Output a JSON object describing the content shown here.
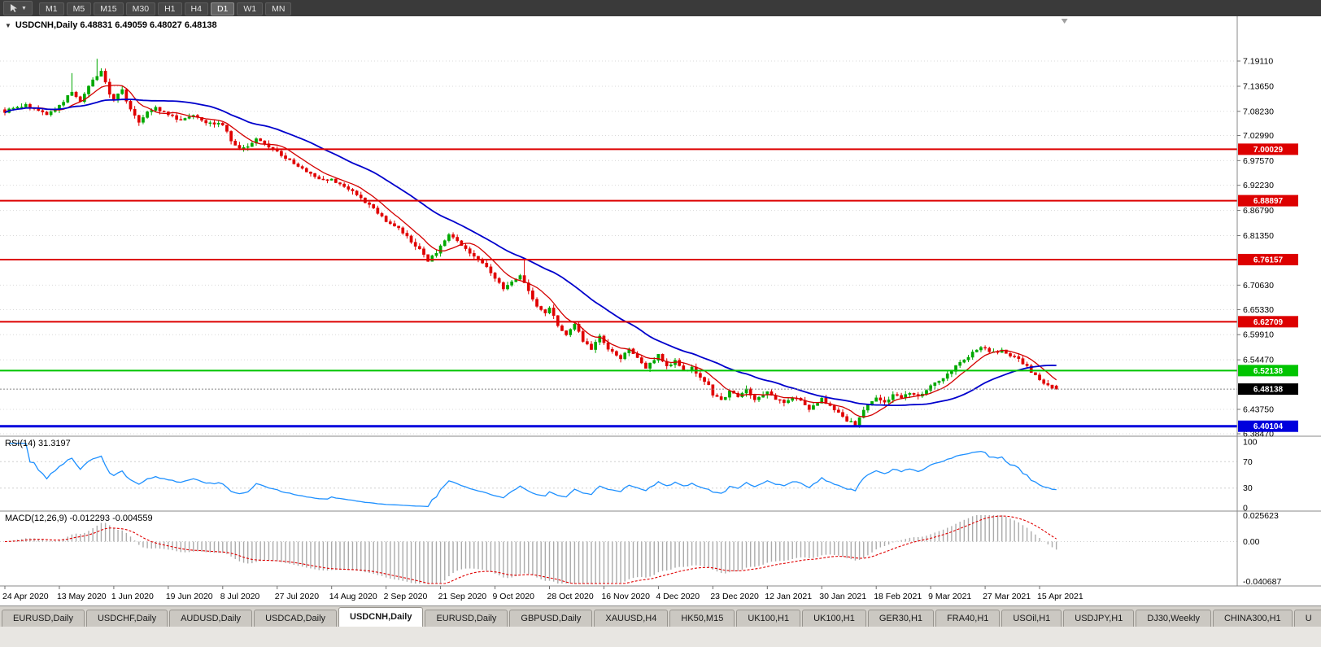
{
  "toolbar": {
    "timeframes": [
      "M1",
      "M5",
      "M15",
      "M30",
      "H1",
      "H4",
      "D1",
      "W1",
      "MN"
    ],
    "active_timeframe": "D1"
  },
  "chart_header": {
    "collapse_icon": "▼",
    "title": "USDCNH,Daily 6.48831 6.49059 6.48027 6.48138"
  },
  "rsi_panel": {
    "label": "RSI(14) 31.3197",
    "axis_labels": [
      "100",
      "70",
      "30",
      "0"
    ],
    "levels": [
      70,
      30
    ]
  },
  "macd_panel": {
    "label": "MACD(12,26,9) -0.012293 -0.004559",
    "axis_max": "0.025623",
    "axis_mid": "0.00",
    "axis_min": "-0.040687"
  },
  "tabs": [
    "EURUSD,Daily",
    "USDCHF,Daily",
    "AUDUSD,Daily",
    "USDCAD,Daily",
    "USDCNH,Daily",
    "EURUSD,Daily",
    "GBPUSD,Daily",
    "XAUUSD,H4",
    "HK50,M15",
    "UK100,H1",
    "UK100,H1",
    "GER30,H1",
    "FRA40,H1",
    "USOil,H1",
    "USDJPY,H1",
    "DJ30,Weekly",
    "CHINA300,H1",
    "U"
  ],
  "active_tab_index": 4,
  "colors": {
    "candle_up": "#00a800",
    "candle_down": "#e00000",
    "ma_fast": "#d40000",
    "ma_slow": "#0000cc",
    "rsi_line": "#1e90ff",
    "macd_hist": "#ababab",
    "macd_signal": "#e00000",
    "level_red": "#dd0000",
    "level_green": "#00c400",
    "level_blue": "#0000dd",
    "badge_current": "#000000",
    "grid": "#d9d9d9",
    "separator": "#8a8a8a"
  },
  "chart_data": {
    "type": "candlestick",
    "symbol": "USDCNH",
    "timeframe": "Daily",
    "ohlc_last": {
      "open": 6.48831,
      "high": 6.49059,
      "low": 6.48027,
      "close": 6.48138
    },
    "current_price": 6.48138,
    "y_axis_ticks": [
      7.1911,
      7.1365,
      7.0823,
      7.0299,
      6.9757,
      6.9223,
      6.8679,
      6.8135,
      6.7063,
      6.6533,
      6.5991,
      6.5447,
      6.4375,
      6.3847
    ],
    "x_axis_labels": [
      "24 Apr 2020",
      "13 May 2020",
      "1 Jun 2020",
      "19 Jun 2020",
      "8 Jul 2020",
      "27 Jul 2020",
      "14 Aug 2020",
      "2 Sep 2020",
      "21 Sep 2020",
      "9 Oct 2020",
      "28 Oct 2020",
      "16 Nov 2020",
      "4 Dec 2020",
      "23 Dec 2020",
      "12 Jan 2021",
      "30 Jan 2021",
      "18 Feb 2021",
      "9 Mar 2021",
      "27 Mar 2021",
      "15 Apr 2021"
    ],
    "candles_per_label": 13,
    "total_candles": 252,
    "horizontal_levels": [
      {
        "price": 7.00029,
        "color": "level_red",
        "width": 2
      },
      {
        "price": 6.88897,
        "color": "level_red",
        "width": 2
      },
      {
        "price": 6.76157,
        "color": "level_red",
        "width": 2
      },
      {
        "price": 6.62709,
        "color": "level_red",
        "width": 2
      },
      {
        "price": 6.52138,
        "color": "level_green",
        "width": 2
      },
      {
        "price": 6.40104,
        "color": "level_blue",
        "width": 3
      }
    ],
    "price_path": [
      [
        0,
        7.082
      ],
      [
        5,
        7.096
      ],
      [
        10,
        7.075
      ],
      [
        13,
        7.094
      ],
      [
        16,
        7.124
      ],
      [
        18,
        7.105
      ],
      [
        21,
        7.15
      ],
      [
        23,
        7.168
      ],
      [
        25,
        7.12
      ],
      [
        26,
        7.11
      ],
      [
        28,
        7.128
      ],
      [
        30,
        7.085
      ],
      [
        32,
        7.06
      ],
      [
        34,
        7.082
      ],
      [
        36,
        7.09
      ],
      [
        39,
        7.075
      ],
      [
        42,
        7.064
      ],
      [
        45,
        7.076
      ],
      [
        48,
        7.06
      ],
      [
        52,
        7.054
      ],
      [
        54,
        7.02
      ],
      [
        56,
        7.0
      ],
      [
        58,
        7.006
      ],
      [
        60,
        7.024
      ],
      [
        62,
        7.01
      ],
      [
        65,
        6.995
      ],
      [
        68,
        6.975
      ],
      [
        71,
        6.958
      ],
      [
        74,
        6.94
      ],
      [
        78,
        6.934
      ],
      [
        81,
        6.918
      ],
      [
        84,
        6.904
      ],
      [
        87,
        6.878
      ],
      [
        89,
        6.864
      ],
      [
        91,
        6.845
      ],
      [
        93,
        6.835
      ],
      [
        95,
        6.82
      ],
      [
        97,
        6.8
      ],
      [
        99,
        6.784
      ],
      [
        101,
        6.76
      ],
      [
        103,
        6.776
      ],
      [
        104,
        6.79
      ],
      [
        106,
        6.814
      ],
      [
        108,
        6.8
      ],
      [
        110,
        6.786
      ],
      [
        112,
        6.77
      ],
      [
        114,
        6.754
      ],
      [
        116,
        6.734
      ],
      [
        117,
        6.72
      ],
      [
        119,
        6.7
      ],
      [
        121,
        6.714
      ],
      [
        123,
        6.728
      ],
      [
        125,
        6.694
      ],
      [
        127,
        6.66
      ],
      [
        129,
        6.645
      ],
      [
        130,
        6.656
      ],
      [
        132,
        6.62
      ],
      [
        134,
        6.6
      ],
      [
        136,
        6.624
      ],
      [
        138,
        6.586
      ],
      [
        140,
        6.566
      ],
      [
        142,
        6.594
      ],
      [
        143,
        6.58
      ],
      [
        145,
        6.56
      ],
      [
        147,
        6.545
      ],
      [
        149,
        6.57
      ],
      [
        151,
        6.55
      ],
      [
        153,
        6.526
      ],
      [
        155,
        6.546
      ],
      [
        156,
        6.556
      ],
      [
        158,
        6.53
      ],
      [
        160,
        6.544
      ],
      [
        162,
        6.52
      ],
      [
        164,
        6.53
      ],
      [
        166,
        6.506
      ],
      [
        168,
        6.49
      ],
      [
        169,
        6.47
      ],
      [
        171,
        6.456
      ],
      [
        173,
        6.476
      ],
      [
        175,
        6.464
      ],
      [
        177,
        6.48
      ],
      [
        179,
        6.46
      ],
      [
        181,
        6.47
      ],
      [
        182,
        6.476
      ],
      [
        184,
        6.46
      ],
      [
        186,
        6.45
      ],
      [
        188,
        6.464
      ],
      [
        190,
        6.455
      ],
      [
        192,
        6.44
      ],
      [
        194,
        6.45
      ],
      [
        195,
        6.46
      ],
      [
        197,
        6.444
      ],
      [
        199,
        6.43
      ],
      [
        201,
        6.414
      ],
      [
        203,
        6.405
      ],
      [
        205,
        6.436
      ],
      [
        207,
        6.455
      ],
      [
        208,
        6.464
      ],
      [
        210,
        6.45
      ],
      [
        212,
        6.47
      ],
      [
        214,
        6.46
      ],
      [
        216,
        6.475
      ],
      [
        218,
        6.464
      ],
      [
        220,
        6.48
      ],
      [
        221,
        6.49
      ],
      [
        223,
        6.5
      ],
      [
        225,
        6.512
      ],
      [
        227,
        6.53
      ],
      [
        229,
        6.546
      ],
      [
        231,
        6.56
      ],
      [
        233,
        6.574
      ],
      [
        234,
        6.57
      ],
      [
        236,
        6.56
      ],
      [
        238,
        6.566
      ],
      [
        240,
        6.554
      ],
      [
        242,
        6.545
      ],
      [
        244,
        6.53
      ],
      [
        246,
        6.51
      ],
      [
        247,
        6.5
      ],
      [
        249,
        6.488
      ],
      [
        251,
        6.48138
      ]
    ],
    "spikes": [
      {
        "i": 16,
        "high": 7.165
      },
      {
        "i": 22,
        "high": 7.196
      },
      {
        "i": 124,
        "high": 6.764
      },
      {
        "i": 203,
        "low": 6.4011
      }
    ],
    "indicators": {
      "ma_fast": {
        "type": "SMA",
        "period": 8
      },
      "ma_slow": {
        "type": "SMA",
        "period": 30
      },
      "rsi": {
        "label": "RSI(14)",
        "value": 31.3197
      },
      "macd": {
        "label": "MACD(12,26,9)",
        "macd_value": -0.012293,
        "signal_value": -0.004559,
        "scale_max": 0.025623,
        "scale_min": -0.040687
      }
    }
  }
}
